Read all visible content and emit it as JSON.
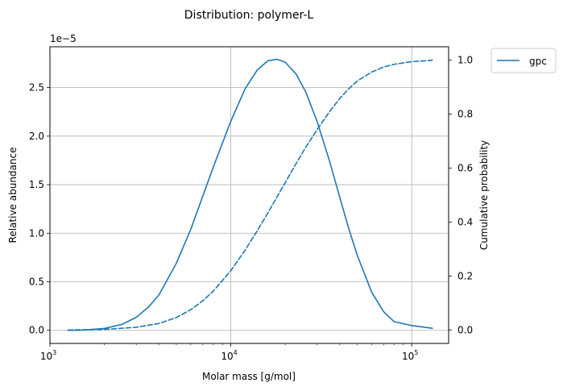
{
  "chart_data": {
    "type": "line",
    "title": "Distribution: polymer-L",
    "xlabel": "Molar mass [g/mol]",
    "ylabel": "Relative abundance",
    "y2label": "Cumulative probability",
    "xscale": "log",
    "xlim": [
      1000,
      160000
    ],
    "ylim": [
      -1.35e-06,
      2.92e-05
    ],
    "y2lim": [
      -0.05,
      1.05
    ],
    "y_offset_label": "1e−5",
    "x_ticks": [
      {
        "value": 1000,
        "base": "10",
        "exp": "3"
      },
      {
        "value": 10000,
        "base": "10",
        "exp": "4"
      },
      {
        "value": 100000,
        "base": "10",
        "exp": "5"
      }
    ],
    "y_ticks": [
      {
        "value": 0.0,
        "label": "0.0"
      },
      {
        "value": 5e-06,
        "label": "0.5"
      },
      {
        "value": 1e-05,
        "label": "1.0"
      },
      {
        "value": 1.5e-05,
        "label": "1.5"
      },
      {
        "value": 2e-05,
        "label": "2.0"
      },
      {
        "value": 2.5e-05,
        "label": "2.5"
      }
    ],
    "y2_ticks": [
      {
        "value": 0.0,
        "label": "0.0"
      },
      {
        "value": 0.2,
        "label": "0.2"
      },
      {
        "value": 0.4,
        "label": "0.4"
      },
      {
        "value": 0.6,
        "label": "0.6"
      },
      {
        "value": 0.8,
        "label": "0.8"
      },
      {
        "value": 1.0,
        "label": "1.0"
      }
    ],
    "grid": true,
    "legend_position": "outside-top-right",
    "series": [
      {
        "name": "gpc",
        "axis": "left",
        "style": "solid",
        "color": "#1f77b4",
        "x": [
          1260,
          1500,
          2000,
          2500,
          3000,
          3500,
          4000,
          5000,
          6000,
          7000,
          8000,
          10000,
          12000,
          14000,
          16000,
          18000,
          20000,
          23000,
          26000,
          30000,
          35000,
          40000,
          45000,
          50000,
          60000,
          70000,
          80000,
          100000,
          130000
        ],
        "y": [
          0.0,
          1.6e-08,
          1.9e-07,
          6.1e-07,
          1.34e-06,
          2.38e-06,
          3.63e-06,
          6.91e-06,
          1.038e-05,
          1.382e-05,
          1.681e-05,
          2.154e-05,
          2.488e-05,
          2.681e-05,
          2.775e-05,
          2.791e-05,
          2.76e-05,
          2.637e-05,
          2.452e-05,
          2.15e-05,
          1.753e-05,
          1.371e-05,
          1.04e-05,
          7.73e-06,
          3.95e-06,
          1.91e-06,
          8.9e-07,
          4.9e-07,
          2.1e-07
        ]
      },
      {
        "axis": "right",
        "style": "dashed",
        "color": "#1f77b4",
        "x": [
          1260,
          2000,
          3000,
          4000,
          5000,
          6000,
          7000,
          8000,
          10000,
          12000,
          14000,
          16000,
          18000,
          20000,
          23000,
          26000,
          30000,
          35000,
          40000,
          45000,
          50000,
          60000,
          70000,
          80000,
          100000,
          130000
        ],
        "y": [
          0.0,
          0.002,
          0.01,
          0.024,
          0.046,
          0.075,
          0.108,
          0.144,
          0.22,
          0.296,
          0.368,
          0.433,
          0.493,
          0.547,
          0.618,
          0.678,
          0.743,
          0.808,
          0.858,
          0.895,
          0.923,
          0.956,
          0.975,
          0.985,
          0.995,
          1.0
        ]
      }
    ]
  }
}
